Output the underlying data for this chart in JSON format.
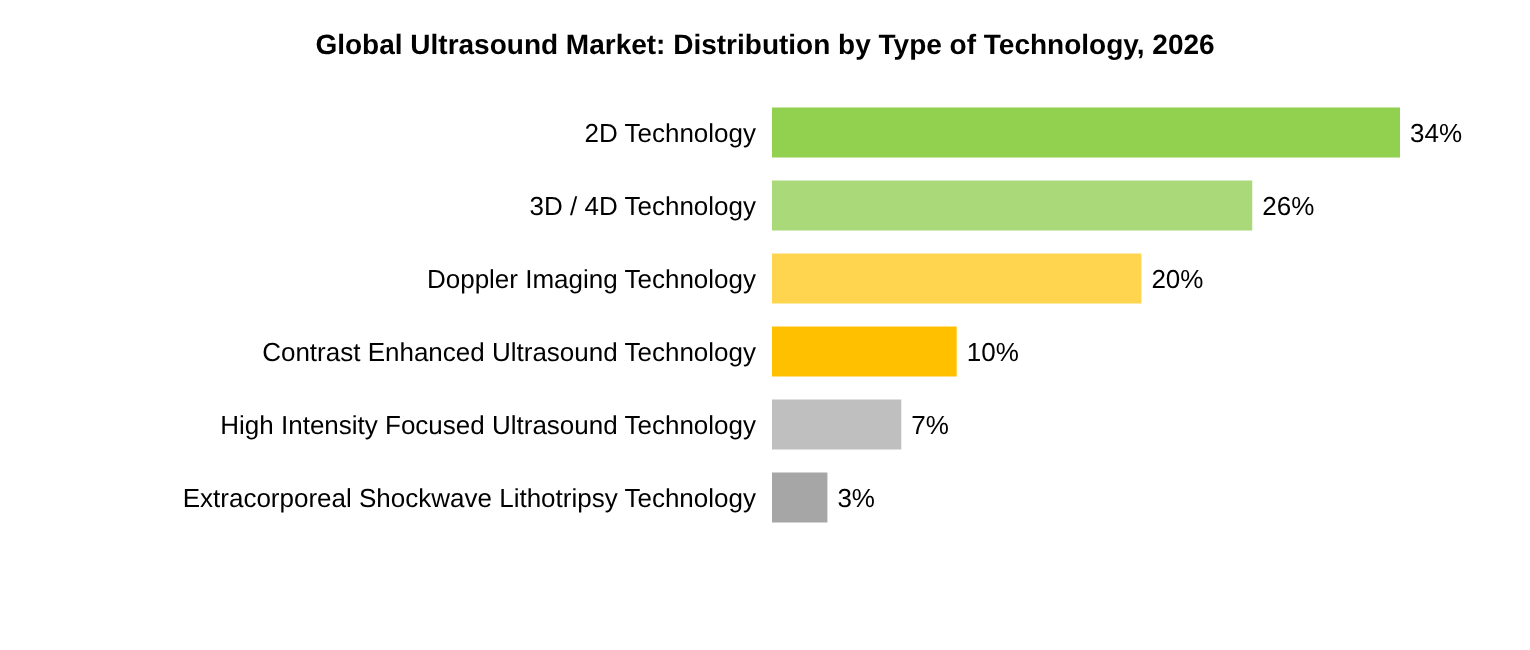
{
  "chart_data": {
    "type": "bar",
    "orientation": "horizontal",
    "title": "Global Ultrasound Market: Distribution by Type of Technology, 2026",
    "categories": [
      "2D Technology",
      "3D / 4D Technology",
      "Doppler Imaging Technology",
      "Contrast Enhanced Ultrasound Technology",
      "High Intensity Focused Ultrasound Technology",
      "Extracorporeal Shockwave Lithotripsy Technology"
    ],
    "values": [
      34,
      26,
      20,
      10,
      7,
      3
    ],
    "colors": [
      "#92d050",
      "#a9d979",
      "#ffd54f",
      "#ffc000",
      "#bfbfbf",
      "#a6a6a6"
    ],
    "value_labels": [
      "34%",
      "26%",
      "20%",
      "10%",
      "7%",
      "3%"
    ]
  }
}
